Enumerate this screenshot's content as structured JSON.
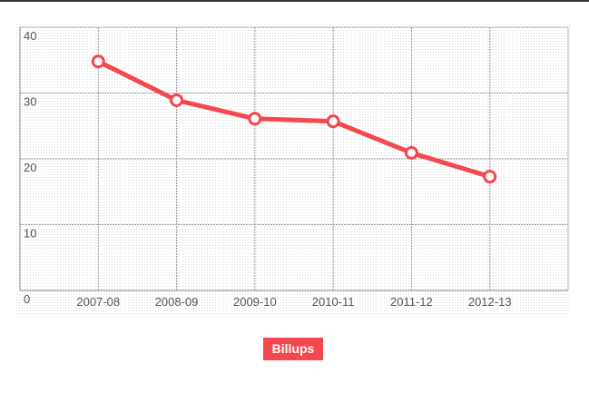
{
  "chart_data": {
    "type": "line",
    "categories": [
      "2007-08",
      "2008-09",
      "2009-10",
      "2010-11",
      "2011-12",
      "2012-13"
    ],
    "series": [
      {
        "name": "Billups",
        "color": "#f4474f",
        "values": [
          34.8,
          28.9,
          26.1,
          25.7,
          20.9,
          17.3
        ]
      }
    ],
    "ylim": [
      0,
      40
    ],
    "yticks": [
      0,
      10,
      20,
      30,
      40
    ],
    "grid": true,
    "legend": "bottom"
  }
}
